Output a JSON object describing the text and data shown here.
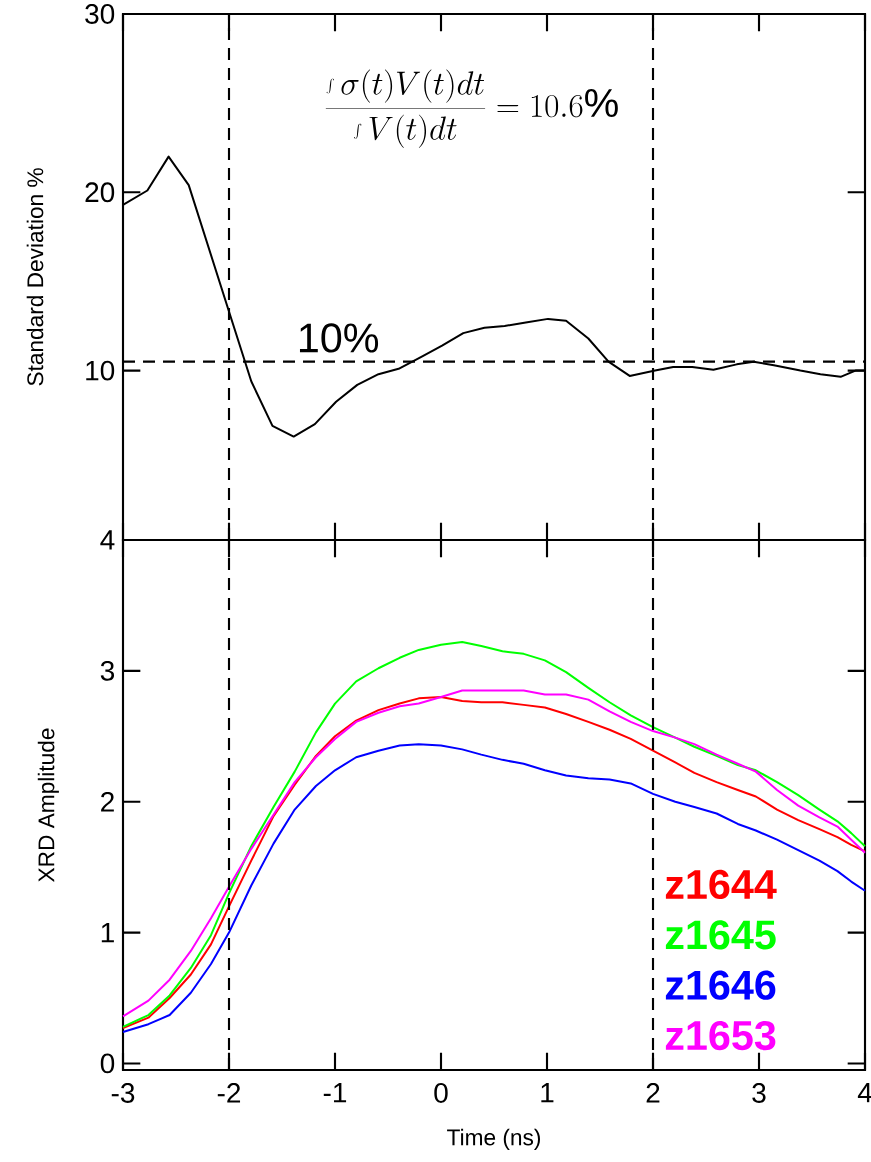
{
  "chart_data": [
    {
      "type": "line",
      "ylabel": "Standard Deviation %",
      "xlim": [
        -3,
        4
      ],
      "xticks": [
        -3,
        -2,
        -1,
        0,
        1,
        2,
        3,
        4
      ],
      "ylim": [
        0.5,
        30
      ],
      "yticks": [
        10,
        20,
        30
      ],
      "tick_labels": "y",
      "line_style": "solid",
      "x": [
        -3,
        -2.77,
        -2.57,
        -2.38,
        -2.01,
        -1.79,
        -1.59,
        -1.39,
        -1.19,
        -0.99,
        -0.79,
        -0.59,
        -0.4,
        -0.19,
        0.01,
        0.21,
        0.41,
        0.6,
        0.8,
        1.01,
        1.18,
        1.39,
        1.58,
        1.78,
        2.02,
        2.19,
        2.37,
        2.57,
        2.79,
        2.95,
        3.14,
        3.39,
        3.58,
        3.77,
        3.91,
        4.0
      ],
      "series": [
        {
          "color": "#000000",
          "values": [
            19.3,
            20.1,
            22.0,
            20.4,
            13.5,
            9.4,
            6.9,
            6.3,
            7.0,
            8.25,
            9.2,
            9.8,
            10.1,
            10.75,
            11.4,
            12.1,
            12.4,
            12.5,
            12.7,
            12.9,
            12.8,
            11.8,
            10.5,
            9.7,
            10.0,
            10.2,
            10.2,
            10.05,
            10.35,
            10.5,
            10.3,
            10.0,
            9.8,
            9.65,
            10.0,
            10.0
          ]
        }
      ],
      "annotations": [
        "\\frac{\\int \\sigma(t)V(t)dt}{\\int V(t)dt}=10.6\\%"
      ],
      "ref_lines": [
        {
          "axis": "x",
          "value": -2,
          "line_style": "dashed"
        },
        {
          "axis": "x",
          "value": 2,
          "line_style": "dashed"
        },
        {
          "axis": "y",
          "value": 10.5,
          "label": "10%",
          "line_style": "dashed"
        }
      ]
    },
    {
      "type": "line",
      "xlabel": "Time (ns)",
      "ylabel": "XRD Amplitude",
      "xlim": [
        -3,
        4
      ],
      "xticks": [
        -3,
        -2,
        -1,
        0,
        1,
        2,
        3,
        4
      ],
      "ylim": [
        -0.05,
        4
      ],
      "yticks": [
        0,
        1,
        2,
        3,
        4
      ],
      "legend": "bottom right",
      "line_style": "solid",
      "x": [
        -3,
        -2.76,
        -2.56,
        -2.36,
        -2.17,
        -2.0,
        -1.79,
        -1.58,
        -1.38,
        -1.18,
        -1.0,
        -0.8,
        -0.59,
        -0.39,
        -0.21,
        0,
        0.2,
        0.38,
        0.58,
        0.78,
        0.98,
        1.18,
        1.39,
        1.59,
        1.79,
        2.0,
        2.21,
        2.39,
        2.6,
        2.8,
        2.97,
        3.17,
        3.37,
        3.57,
        3.74,
        3.87,
        4.0
      ],
      "series": [
        {
          "name": "z1644",
          "color": "#ff0000",
          "values": [
            0.27,
            0.35,
            0.5,
            0.68,
            0.91,
            1.2,
            1.55,
            1.89,
            2.13,
            2.35,
            2.5,
            2.62,
            2.7,
            2.75,
            2.79,
            2.8,
            2.77,
            2.76,
            2.76,
            2.74,
            2.72,
            2.67,
            2.61,
            2.55,
            2.48,
            2.39,
            2.3,
            2.22,
            2.15,
            2.09,
            2.04,
            1.94,
            1.86,
            1.79,
            1.73,
            1.67,
            1.62
          ]
        },
        {
          "name": "z1645",
          "color": "#00ff00",
          "values": [
            0.28,
            0.37,
            0.52,
            0.73,
            0.98,
            1.3,
            1.66,
            1.96,
            2.23,
            2.53,
            2.75,
            2.92,
            3.02,
            3.1,
            3.16,
            3.2,
            3.22,
            3.19,
            3.15,
            3.13,
            3.08,
            2.99,
            2.87,
            2.76,
            2.66,
            2.57,
            2.49,
            2.42,
            2.35,
            2.28,
            2.24,
            2.15,
            2.05,
            1.94,
            1.85,
            1.76,
            1.66
          ]
        },
        {
          "name": "z1646",
          "color": "#0000ff",
          "values": [
            0.24,
            0.3,
            0.37,
            0.54,
            0.76,
            1.0,
            1.36,
            1.68,
            1.94,
            2.12,
            2.24,
            2.34,
            2.39,
            2.43,
            2.44,
            2.43,
            2.4,
            2.36,
            2.32,
            2.29,
            2.24,
            2.2,
            2.18,
            2.17,
            2.14,
            2.06,
            2.0,
            1.96,
            1.91,
            1.83,
            1.78,
            1.71,
            1.63,
            1.55,
            1.47,
            1.39,
            1.32
          ]
        },
        {
          "name": "z1653",
          "color": "#ff00ff",
          "values": [
            0.36,
            0.48,
            0.64,
            0.86,
            1.11,
            1.35,
            1.64,
            1.9,
            2.15,
            2.34,
            2.48,
            2.61,
            2.68,
            2.73,
            2.75,
            2.8,
            2.85,
            2.85,
            2.85,
            2.85,
            2.82,
            2.82,
            2.78,
            2.69,
            2.61,
            2.54,
            2.49,
            2.44,
            2.36,
            2.29,
            2.23,
            2.09,
            1.97,
            1.88,
            1.81,
            1.71,
            1.61
          ]
        }
      ],
      "ref_lines": [
        {
          "axis": "x",
          "value": -2,
          "line_style": "dashed"
        },
        {
          "axis": "x",
          "value": 2,
          "line_style": "dashed"
        }
      ]
    }
  ]
}
